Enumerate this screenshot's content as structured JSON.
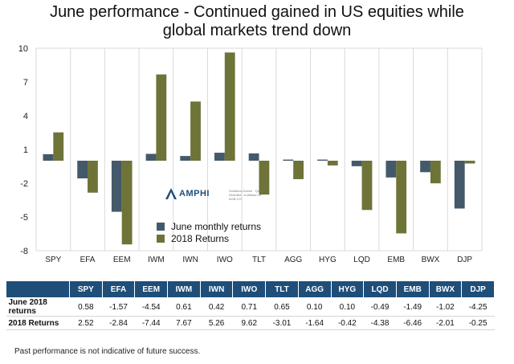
{
  "title_line1": "June performance - Continued gained in US equities while",
  "title_line2": "global markets trend down",
  "colors": {
    "june": "#44596a",
    "ytd": "#6e7338",
    "table_header": "#1f4e79"
  },
  "chart_data": {
    "type": "bar",
    "categories": [
      "SPY",
      "EFA",
      "EEM",
      "IWM",
      "IWN",
      "IWO",
      "TLT",
      "AGG",
      "HYG",
      "LQD",
      "EMB",
      "BWX",
      "DJP"
    ],
    "series": [
      {
        "name": "June monthly returns",
        "values": [
          0.58,
          -1.57,
          -4.54,
          0.61,
          0.42,
          0.71,
          0.65,
          0.1,
          0.1,
          -0.49,
          -1.49,
          -1.02,
          -4.25
        ]
      },
      {
        "name": "2018 Returns",
        "values": [
          2.52,
          -2.84,
          -7.44,
          7.67,
          5.26,
          9.62,
          -3.01,
          -1.64,
          -0.42,
          -4.38,
          -6.46,
          -2.01,
          -0.25
        ]
      }
    ],
    "ylim": [
      -8,
      10
    ],
    "yticks": [
      10,
      7,
      4,
      1,
      -2,
      -5,
      -8
    ],
    "grid": "vertical",
    "legend": "lower-left inside"
  },
  "logo": {
    "name": "AMPHI",
    "tagline": "Solutions Driven · Quality Oriented · A division of AGB CO"
  },
  "table": {
    "headers": [
      "",
      "SPY",
      "EFA",
      "EEM",
      "IWM",
      "IWN",
      "IWO",
      "TLT",
      "AGG",
      "HYG",
      "LQD",
      "EMB",
      "BWX",
      "DJP"
    ],
    "rows": [
      {
        "label": "June 2018 returns",
        "cells": [
          "0.58",
          "-1.57",
          "-4.54",
          "0.61",
          "0.42",
          "0.71",
          "0.65",
          "0.10",
          "0.10",
          "-0.49",
          "-1.49",
          "-1.02",
          "-4.25"
        ]
      },
      {
        "label": "2018 Returns",
        "cells": [
          "2.52",
          "-2.84",
          "-7.44",
          "7.67",
          "5.26",
          "9.62",
          "-3.01",
          "-1.64",
          "-0.42",
          "-4.38",
          "-6.46",
          "-2.01",
          "-0.25"
        ]
      }
    ]
  },
  "footnote": "Past performance is not indicative of future success."
}
